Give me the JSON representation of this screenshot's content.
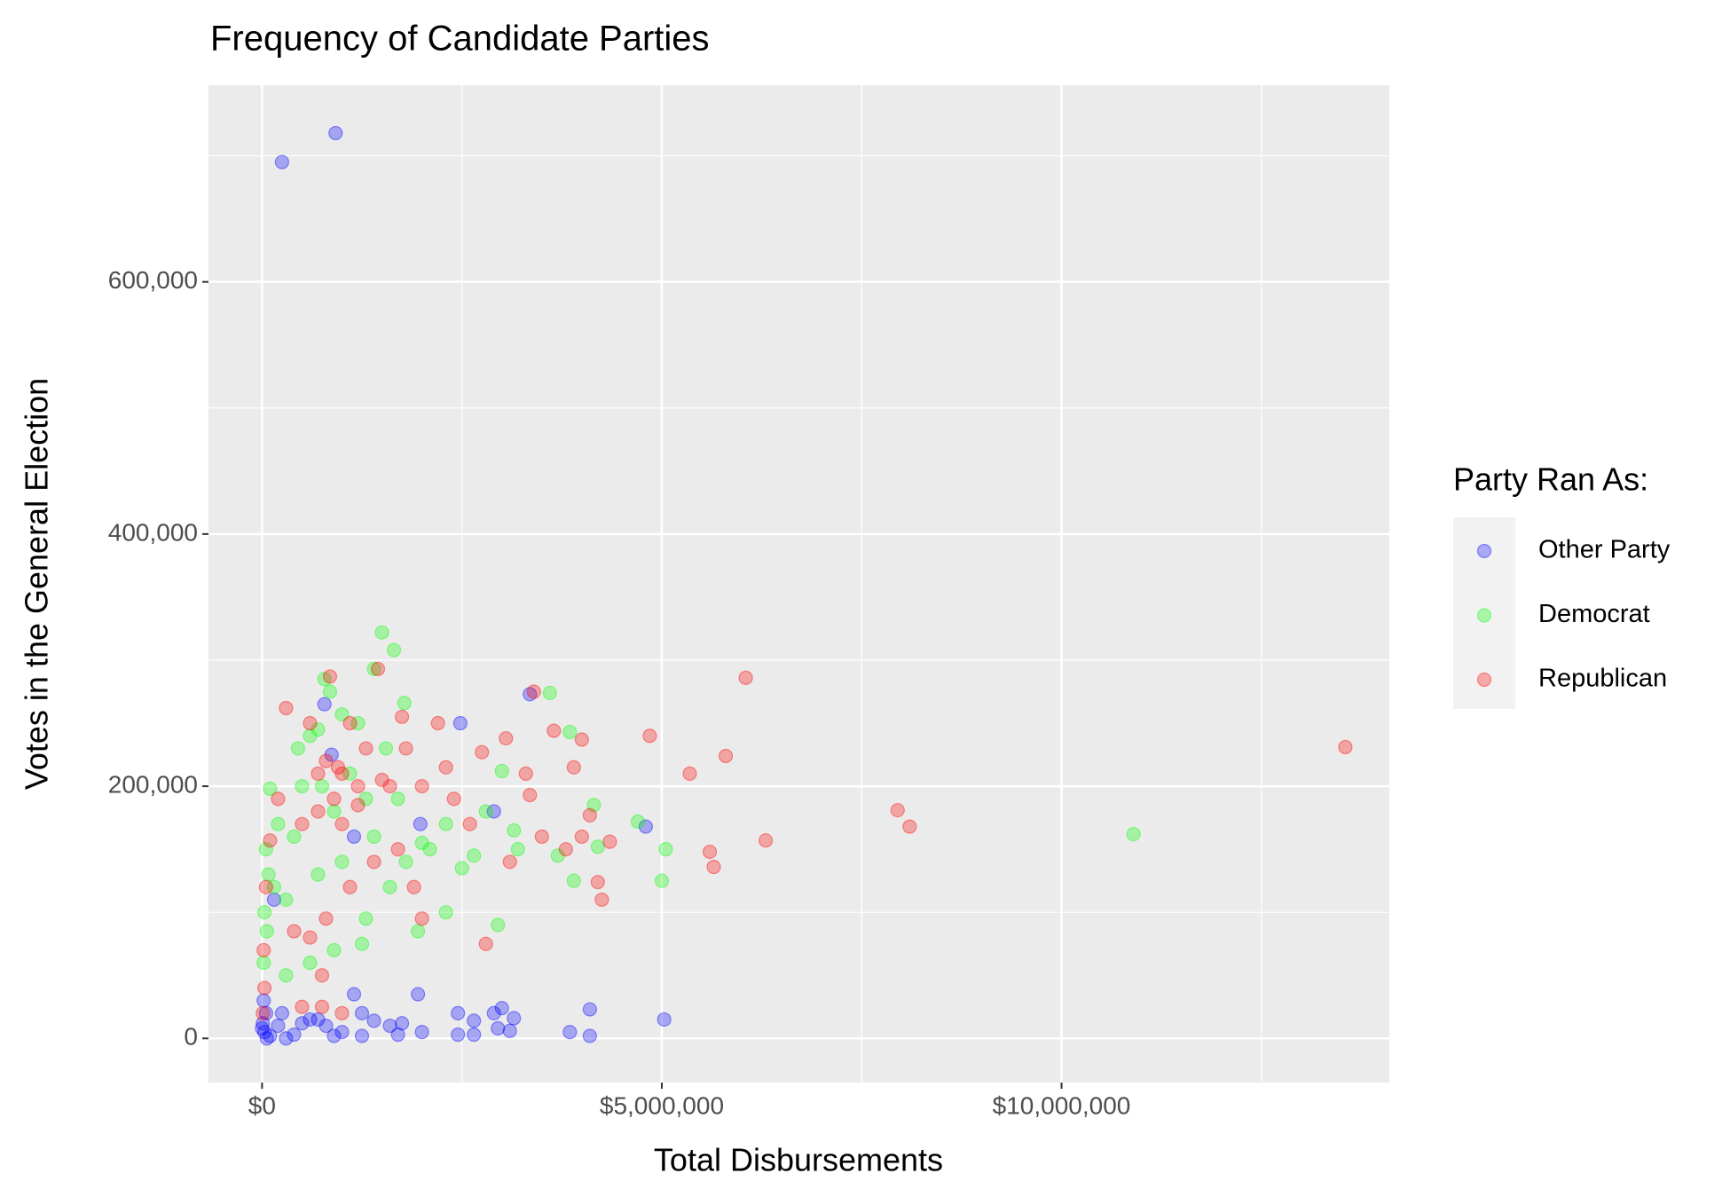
{
  "chart_data": {
    "type": "scatter",
    "title": "Frequency of Candidate Parties",
    "x_label": "Total Disbursements",
    "y_label": "Votes in the General Election",
    "legend_title": "Party Ran As:",
    "legend_position": "right",
    "grid": true,
    "xlim": [
      -670000,
      14100000
    ],
    "ylim": [
      -35000,
      756000
    ],
    "xticks": [
      {
        "value": 0,
        "label": "$0"
      },
      {
        "value": 5000000,
        "label": "$5,000,000"
      },
      {
        "value": 10000000,
        "label": "$10,000,000"
      }
    ],
    "x_minor_ticks": [
      2500000,
      7500000,
      12500000
    ],
    "yticks": [
      {
        "value": 0,
        "label": "0"
      },
      {
        "value": 200000,
        "label": "200,000"
      },
      {
        "value": 400000,
        "label": "400,000"
      },
      {
        "value": 600000,
        "label": "600,000"
      }
    ],
    "y_minor_ticks": [
      100000,
      300000,
      500000,
      700000
    ],
    "series": [
      {
        "name": "Other Party",
        "color": "#0000ff",
        "x": [
          250000,
          920000,
          780000,
          2480000,
          3350000,
          4800000,
          2900000,
          1980000,
          870000,
          1150000,
          5030000,
          4100000,
          4100000,
          3850000,
          3100000,
          3000000,
          2900000,
          2650000,
          2450000,
          2450000,
          2650000,
          1950000,
          1150000,
          1400000,
          1600000,
          1750000,
          1700000,
          1250000,
          1000000,
          800000,
          600000,
          400000,
          300000,
          200000,
          100000,
          50000,
          30000,
          20000,
          10000,
          0,
          150000,
          2000000,
          3150000,
          2950000,
          1250000,
          900000,
          700000,
          500000,
          250000,
          60000
        ],
        "values": [
          695000,
          718000,
          265000,
          250000,
          273000,
          168000,
          180000,
          170000,
          225000,
          160000,
          15000,
          23000,
          2000,
          5000,
          6000,
          24000,
          20000,
          14000,
          20000,
          3000,
          3000,
          35000,
          35000,
          14000,
          10000,
          12000,
          3000,
          2000,
          5000,
          10000,
          15000,
          3000,
          0,
          10000,
          2000,
          20000,
          5000,
          30000,
          12000,
          8000,
          110000,
          5000,
          16000,
          8000,
          20000,
          2000,
          15000,
          12000,
          20000,
          0
        ]
      },
      {
        "name": "Democrat",
        "color": "#00ff00",
        "x": [
          1500000,
          1650000,
          1400000,
          3600000,
          780000,
          850000,
          1780000,
          1000000,
          1200000,
          600000,
          3850000,
          4150000,
          4700000,
          5050000,
          5000000,
          10900000,
          3150000,
          3000000,
          2800000,
          2300000,
          2000000,
          1800000,
          1600000,
          1300000,
          900000,
          600000,
          300000,
          100000,
          50000,
          30000,
          80000,
          200000,
          400000,
          500000,
          700000,
          900000,
          1100000,
          1400000,
          1700000,
          2100000,
          2500000,
          3200000,
          3700000,
          3900000,
          4200000,
          2950000,
          1950000,
          2300000,
          1250000,
          700000,
          300000,
          150000,
          20000,
          60000,
          1000000,
          1550000,
          750000,
          450000,
          1300000,
          2650000
        ],
        "values": [
          322000,
          308000,
          293000,
          274000,
          285000,
          275000,
          266000,
          257000,
          250000,
          240000,
          243000,
          185000,
          172000,
          150000,
          125000,
          162000,
          165000,
          212000,
          180000,
          170000,
          155000,
          140000,
          120000,
          95000,
          70000,
          60000,
          50000,
          198000,
          150000,
          100000,
          130000,
          170000,
          160000,
          200000,
          245000,
          180000,
          210000,
          160000,
          190000,
          150000,
          135000,
          150000,
          145000,
          125000,
          152000,
          90000,
          85000,
          100000,
          75000,
          130000,
          110000,
          120000,
          60000,
          85000,
          140000,
          230000,
          200000,
          230000,
          190000,
          145000
        ]
      },
      {
        "name": "Republican",
        "color": "#ff0000",
        "x": [
          13550000,
          6050000,
          5800000,
          5350000,
          4850000,
          6300000,
          5600000,
          5650000,
          7950000,
          8100000,
          4000000,
          3400000,
          3650000,
          3350000,
          3900000,
          4100000,
          4250000,
          4200000,
          4350000,
          3800000,
          3050000,
          2800000,
          2750000,
          2200000,
          1450000,
          850000,
          300000,
          600000,
          800000,
          1000000,
          1200000,
          900000,
          700000,
          500000,
          1100000,
          1300000,
          1600000,
          1800000,
          2000000,
          2400000,
          2600000,
          1900000,
          1700000,
          1400000,
          1100000,
          800000,
          600000,
          400000,
          200000,
          100000,
          50000,
          20000,
          30000,
          10000,
          500000,
          750000,
          1000000,
          2000000,
          1750000,
          950000,
          700000,
          1200000,
          1500000,
          2300000,
          3100000,
          3300000,
          3500000,
          4000000,
          750000,
          1000000
        ],
        "values": [
          231000,
          286000,
          224000,
          210000,
          240000,
          157000,
          148000,
          136000,
          181000,
          168000,
          237000,
          275000,
          244000,
          193000,
          215000,
          177000,
          110000,
          124000,
          156000,
          150000,
          238000,
          75000,
          227000,
          250000,
          293000,
          287000,
          262000,
          250000,
          220000,
          210000,
          200000,
          190000,
          180000,
          170000,
          250000,
          230000,
          200000,
          230000,
          200000,
          190000,
          170000,
          120000,
          150000,
          140000,
          120000,
          95000,
          80000,
          85000,
          190000,
          157000,
          120000,
          70000,
          40000,
          20000,
          25000,
          25000,
          20000,
          95000,
          255000,
          215000,
          210000,
          185000,
          205000,
          215000,
          140000,
          210000,
          160000,
          160000,
          50000,
          170000
        ]
      }
    ]
  }
}
